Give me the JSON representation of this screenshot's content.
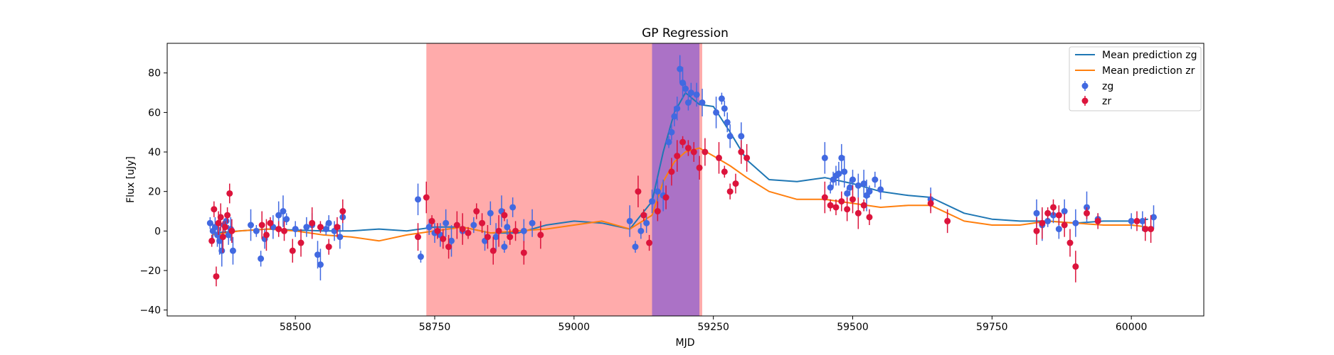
{
  "chart_data": {
    "type": "scatter",
    "title": "GP Regression",
    "xlabel": "MJD",
    "ylabel": "Flux [uJy]",
    "xlim": [
      58270,
      60130
    ],
    "ylim": [
      -43,
      95
    ],
    "xticks": [
      58500,
      58750,
      59000,
      59250,
      59500,
      59750,
      60000
    ],
    "yticks": [
      -40,
      -20,
      0,
      20,
      40,
      60,
      80
    ],
    "grid": false,
    "legend_position": "top-right",
    "shaded_regions": [
      {
        "x0": 58735,
        "x1": 59230,
        "color": "#ff0000",
        "alpha": 0.33
      },
      {
        "x0": 59140,
        "x1": 59225,
        "color": "#0000ff",
        "alpha": 0.33
      }
    ],
    "lines": [
      {
        "name": "Mean prediction zg",
        "color": "#1f77b4",
        "x": [
          58350,
          58400,
          58450,
          58500,
          58550,
          58600,
          58650,
          58700,
          58750,
          58800,
          58850,
          58900,
          58950,
          59000,
          59050,
          59100,
          59140,
          59160,
          59180,
          59200,
          59225,
          59250,
          59280,
          59310,
          59350,
          59400,
          59450,
          59500,
          59550,
          59600,
          59640,
          59700,
          59750,
          59800,
          59850,
          59900,
          59950,
          60000,
          60030
        ],
        "y": [
          -1,
          0,
          1,
          0.5,
          0,
          0,
          1,
          0,
          2,
          2,
          -1,
          -1,
          3,
          5,
          4,
          1,
          15,
          40,
          60,
          70,
          64,
          63,
          50,
          36,
          26,
          25,
          27,
          24,
          20,
          18,
          17,
          9,
          6,
          5,
          5,
          4,
          5,
          5,
          6
        ]
      },
      {
        "name": "Mean prediction zr",
        "color": "#ff7f0e",
        "x": [
          58350,
          58400,
          58450,
          58500,
          58550,
          58600,
          58650,
          58700,
          58750,
          58800,
          58850,
          58900,
          58950,
          59000,
          59050,
          59100,
          59140,
          59160,
          59180,
          59200,
          59225,
          59250,
          59280,
          59310,
          59350,
          59400,
          59450,
          59500,
          59550,
          59600,
          59640,
          59700,
          59750,
          59800,
          59850,
          59900,
          59950,
          60000,
          60030
        ],
        "y": [
          -2,
          0,
          1,
          0,
          -2,
          -3,
          -5,
          -2,
          0,
          2,
          -1,
          0,
          1,
          3,
          5,
          1,
          8,
          25,
          35,
          40,
          42,
          38,
          33,
          27,
          20,
          16,
          16,
          14,
          12,
          13,
          13,
          5,
          3,
          3,
          5,
          4,
          3,
          3,
          2
        ]
      }
    ],
    "series": [
      {
        "name": "zg",
        "color": "#4169e1",
        "x": [
          58347,
          58352,
          58356,
          58360,
          58364,
          58368,
          58372,
          58376,
          58380,
          58384,
          58388,
          58420,
          58430,
          58438,
          58445,
          58460,
          58470,
          58478,
          58484,
          58500,
          58520,
          58530,
          58540,
          58545,
          58555,
          58560,
          58570,
          58580,
          58585,
          58720,
          58725,
          58740,
          58750,
          58760,
          58770,
          58780,
          58800,
          58820,
          58840,
          58850,
          58860,
          58870,
          58875,
          58880,
          58890,
          58910,
          58925,
          59100,
          59110,
          59120,
          59130,
          59140,
          59150,
          59160,
          59170,
          59175,
          59180,
          59185,
          59190,
          59195,
          59200,
          59205,
          59210,
          59220,
          59230,
          59255,
          59265,
          59270,
          59275,
          59280,
          59300,
          59450,
          59460,
          59465,
          59470,
          59475,
          59480,
          59485,
          59490,
          59495,
          59500,
          59510,
          59520,
          59525,
          59530,
          59540,
          59550,
          59640,
          59830,
          59840,
          59850,
          59860,
          59870,
          59880,
          59900,
          59920,
          59940,
          60000,
          60020,
          60040
        ],
        "y": [
          4,
          0,
          2,
          -2,
          -5,
          -10,
          3,
          5,
          -2,
          1,
          -10,
          3,
          0,
          -14,
          -4,
          2,
          8,
          10,
          6,
          1,
          2,
          3,
          -12,
          -17,
          1,
          4,
          0,
          -3,
          7,
          16,
          -13,
          2,
          -1,
          -2,
          4,
          -5,
          0,
          3,
          -5,
          9,
          -3,
          10,
          -8,
          2,
          12,
          0,
          4,
          5,
          -8,
          0,
          4,
          15,
          20,
          18,
          45,
          50,
          58,
          62,
          82,
          75,
          72,
          65,
          70,
          69,
          65,
          60,
          67,
          62,
          55,
          48,
          48,
          37,
          22,
          26,
          28,
          29,
          37,
          30,
          19,
          22,
          26,
          23,
          24,
          18,
          20,
          26,
          21,
          16,
          9,
          3,
          5,
          8,
          1,
          10,
          4,
          12,
          6,
          5,
          5,
          7
        ]
      },
      {
        "name": "zr",
        "color": "#dc143c",
        "x": [
          58350,
          58354,
          58358,
          58362,
          58366,
          58370,
          58374,
          58378,
          58382,
          58386,
          58440,
          58448,
          58455,
          58470,
          58480,
          58495,
          58510,
          58530,
          58545,
          58560,
          58575,
          58585,
          58720,
          58735,
          58745,
          58755,
          58765,
          58775,
          58790,
          58800,
          58810,
          58825,
          58835,
          58845,
          58855,
          58865,
          58875,
          58885,
          58895,
          58910,
          58940,
          59115,
          59125,
          59135,
          59150,
          59165,
          59175,
          59185,
          59195,
          59205,
          59215,
          59225,
          59235,
          59260,
          59270,
          59280,
          59290,
          59300,
          59310,
          59450,
          59460,
          59470,
          59480,
          59490,
          59500,
          59510,
          59520,
          59530,
          59640,
          59670,
          59830,
          59840,
          59850,
          59860,
          59870,
          59880,
          59890,
          59900,
          59920,
          59940,
          60010,
          60025,
          60035
        ],
        "y": [
          -5,
          11,
          -23,
          4,
          7,
          -3,
          2,
          8,
          19,
          0,
          3,
          -2,
          4,
          1,
          0,
          -10,
          -6,
          4,
          2,
          -8,
          2,
          10,
          -3,
          17,
          5,
          0,
          -4,
          -8,
          3,
          1,
          -1,
          10,
          4,
          -3,
          -10,
          0,
          8,
          -3,
          0,
          -11,
          -2,
          20,
          8,
          -6,
          10,
          17,
          30,
          38,
          45,
          42,
          40,
          32,
          40,
          37,
          30,
          20,
          24,
          40,
          37,
          17,
          13,
          12,
          15,
          11,
          16,
          9,
          13,
          7,
          14,
          5,
          0,
          4,
          9,
          12,
          8,
          3,
          -6,
          -18,
          9,
          5,
          5,
          1,
          1
        ]
      }
    ]
  }
}
